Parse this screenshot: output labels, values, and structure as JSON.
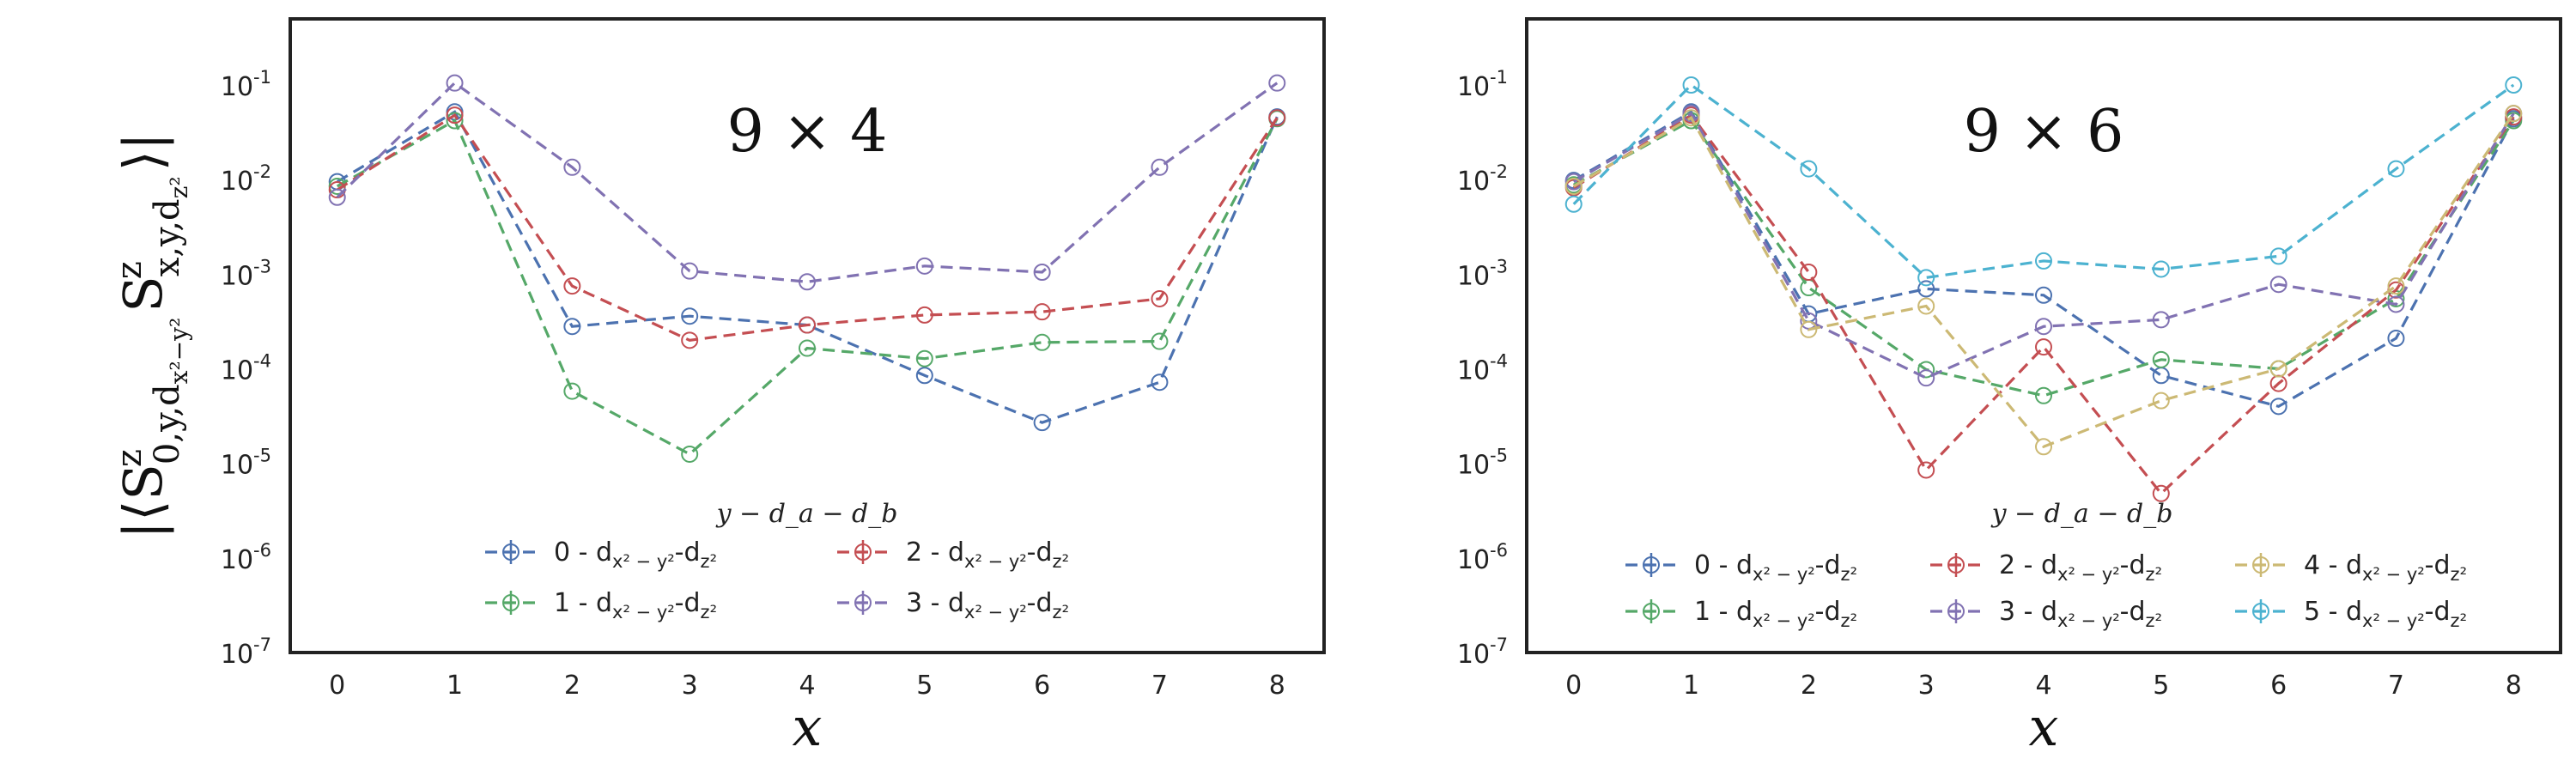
{
  "chart_data": [
    {
      "type": "line",
      "title": "9 × 4",
      "xlabel": "x",
      "ylabel": "|⟨S^z_{0,y,d_{x²−y²}} S^z_{x,y,d_{z²}}⟩|",
      "yscale": "log",
      "ylim": [
        1e-07,
        0.5
      ],
      "xlim": [
        -0.4,
        8.4
      ],
      "x": [
        0,
        1,
        2,
        3,
        4,
        5,
        6,
        7,
        8
      ],
      "xticks": [
        "0",
        "1",
        "2",
        "3",
        "4",
        "5",
        "6",
        "7",
        "8"
      ],
      "yticks": [
        "10",
        "10",
        "10",
        "10",
        "10",
        "10",
        "10"
      ],
      "ytick_exponents": [
        "-7",
        "-6",
        "-5",
        "-4",
        "-3",
        "-2",
        "-1"
      ],
      "ytick_values": [
        1e-07,
        1e-06,
        1e-05,
        0.0001,
        0.001,
        0.01,
        0.1
      ],
      "legend_title": "y − d_a − d_b",
      "legend_columns": 2,
      "legend_position": "lower center",
      "grid": false,
      "series": [
        {
          "name": "0 - dx²−y²-dz²",
          "label_prefix": "0 - d",
          "label_sub1": "x² − y²",
          "label_mid": "-d",
          "label_sub2": "z²",
          "color": "#4c72b0",
          "values": [
            0.0095,
            0.052,
            0.00028,
            0.00036,
            0.00029,
            8.5e-05,
            2.7e-05,
            7.2e-05,
            0.046
          ]
        },
        {
          "name": "1 - dx²−y²-dz²",
          "label_prefix": "1 - d",
          "label_sub1": "x² − y²",
          "label_mid": "-d",
          "label_sub2": "z²",
          "color": "#55a868",
          "values": [
            0.0085,
            0.042,
            5.8e-05,
            1.25e-05,
            0.000165,
            0.000128,
            0.00019,
            0.000195,
            0.044
          ]
        },
        {
          "name": "2 - dx²−y²-dz²",
          "label_prefix": "2 - d",
          "label_sub1": "x² − y²",
          "label_mid": "-d",
          "label_sub2": "z²",
          "color": "#c44e52",
          "values": [
            0.0078,
            0.048,
            0.00075,
            0.0002,
            0.00029,
            0.00037,
            0.0004,
            0.00055,
            0.045
          ]
        },
        {
          "name": "3 - dx²−y²-dz²",
          "label_prefix": "3 - d",
          "label_sub1": "x² − y²",
          "label_mid": "-d",
          "label_sub2": "z²",
          "color": "#8172b2",
          "values": [
            0.0065,
            0.105,
            0.0135,
            0.00108,
            0.00083,
            0.00122,
            0.00105,
            0.0135,
            0.105
          ]
        }
      ]
    },
    {
      "type": "line",
      "title": "9 × 6",
      "xlabel": "x",
      "yscale": "log",
      "ylim": [
        1e-07,
        0.5
      ],
      "xlim": [
        -0.4,
        8.4
      ],
      "x": [
        0,
        1,
        2,
        3,
        4,
        5,
        6,
        7,
        8
      ],
      "xticks": [
        "0",
        "1",
        "2",
        "3",
        "4",
        "5",
        "6",
        "7",
        "8"
      ],
      "yticks": [
        "10",
        "10",
        "10",
        "10",
        "10",
        "10",
        "10"
      ],
      "ytick_exponents": [
        "-7",
        "-6",
        "-5",
        "-4",
        "-3",
        "-2",
        "-1"
      ],
      "ytick_values": [
        1e-07,
        1e-06,
        1e-05,
        0.0001,
        0.001,
        0.01,
        0.1
      ],
      "legend_title": "y − d_a − d_b",
      "legend_columns": 3,
      "legend_position": "lower center",
      "grid": false,
      "series": [
        {
          "name": "0 - dx²−y²-dz²",
          "label_prefix": "0 - d",
          "label_sub1": "x² − y²",
          "label_mid": "-d",
          "label_sub2": "z²",
          "color": "#4c72b0",
          "values": [
            0.0098,
            0.052,
            0.00038,
            0.0007,
            0.0006,
            8.5e-05,
            4e-05,
            0.00021,
            0.044
          ]
        },
        {
          "name": "1 - dx²−y²-dz²",
          "label_prefix": "1 - d",
          "label_sub1": "x² − y²",
          "label_mid": "-d",
          "label_sub2": "z²",
          "color": "#55a868",
          "values": [
            0.0088,
            0.042,
            0.00072,
            9.8e-05,
            5.2e-05,
            0.000125,
            0.0001,
            0.00055,
            0.042
          ]
        },
        {
          "name": "2 - dx²−y²-dz²",
          "label_prefix": "2 - d",
          "label_sub1": "x² − y²",
          "label_mid": "-d",
          "label_sub2": "z²",
          "color": "#c44e52",
          "values": [
            0.0082,
            0.048,
            0.00105,
            8.5e-06,
            0.00017,
            4.8e-06,
            7e-05,
            0.00068,
            0.046
          ]
        },
        {
          "name": "3 - dx²−y²-dz²",
          "label_prefix": "3 - d",
          "label_sub1": "x² − y²",
          "label_mid": "-d",
          "label_sub2": "z²",
          "color": "#8172b2",
          "values": [
            0.0095,
            0.05,
            0.00032,
            8e-05,
            0.00028,
            0.00033,
            0.00078,
            0.00048,
            0.05
          ]
        },
        {
          "name": "4 - dx²−y²-dz²",
          "label_prefix": "4 - d",
          "label_sub1": "x² − y²",
          "label_mid": "-d",
          "label_sub2": "z²",
          "color": "#ccb974",
          "values": [
            0.0085,
            0.045,
            0.00026,
            0.00046,
            1.5e-05,
            4.6e-05,
            0.0001,
            0.00075,
            0.05
          ]
        },
        {
          "name": "5 - dx²−y²-dz²",
          "label_prefix": "5 - d",
          "label_sub1": "x² − y²",
          "label_mid": "-d",
          "label_sub2": "z²",
          "color": "#4cb2d0",
          "values": [
            0.0055,
            0.1,
            0.013,
            0.00092,
            0.00138,
            0.00113,
            0.00155,
            0.013,
            0.1
          ]
        }
      ]
    }
  ]
}
